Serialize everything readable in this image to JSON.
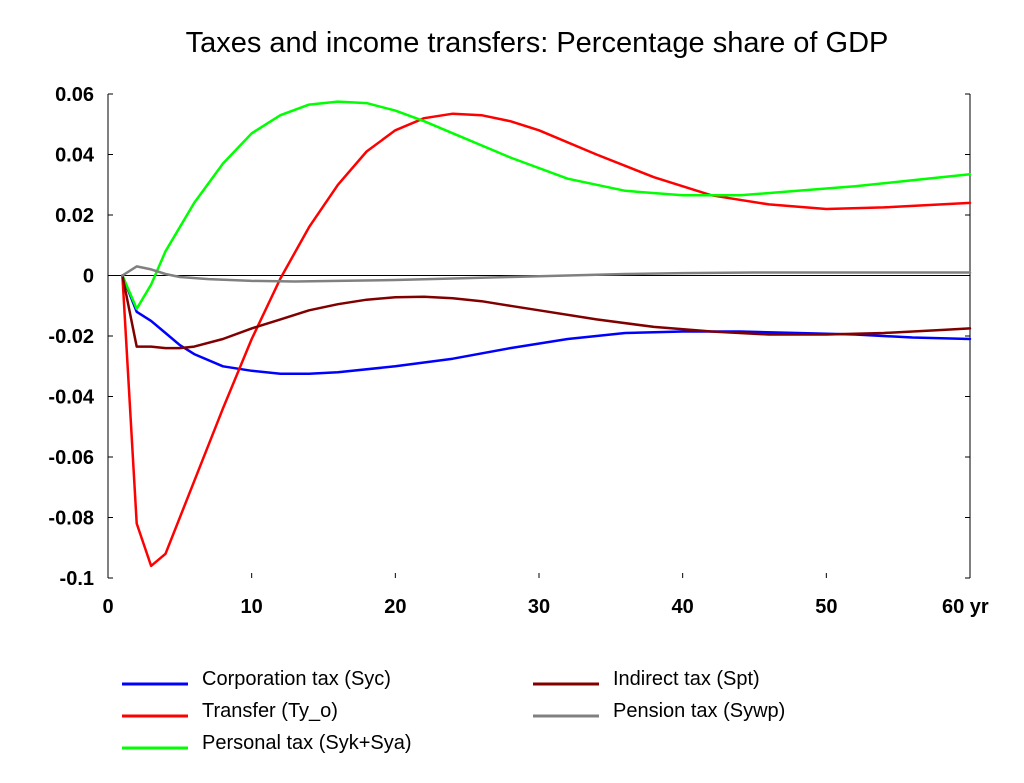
{
  "chart_data": {
    "type": "line",
    "title": "Taxes and income transfers: Percentage share of GDP",
    "xlabel": "",
    "ylabel": "",
    "x_unit_label": "yr",
    "xlim": [
      0,
      60
    ],
    "ylim": [
      -0.1,
      0.06
    ],
    "x_ticks": [
      {
        "value": 0,
        "label": "0"
      },
      {
        "value": 10,
        "label": "10"
      },
      {
        "value": 20,
        "label": "20"
      },
      {
        "value": 30,
        "label": "30"
      },
      {
        "value": 40,
        "label": "40"
      },
      {
        "value": 50,
        "label": "50"
      },
      {
        "value": 60,
        "label": "60 yr"
      }
    ],
    "y_ticks": [
      {
        "value": 0.06,
        "label": "0.06"
      },
      {
        "value": 0.04,
        "label": "0.04"
      },
      {
        "value": 0.02,
        "label": "0.02"
      },
      {
        "value": 0,
        "label": "0"
      },
      {
        "value": -0.02,
        "label": "-0.02"
      },
      {
        "value": -0.04,
        "label": "-0.04"
      },
      {
        "value": -0.06,
        "label": "-0.06"
      },
      {
        "value": -0.08,
        "label": "-0.08"
      },
      {
        "value": -0.1,
        "label": "-0.1"
      }
    ],
    "grid": false,
    "zero_line": true,
    "legend_position": "bottom",
    "series": [
      {
        "name": "Corporation tax (Syc)",
        "color": "#0000ff",
        "points": [
          [
            1,
            0
          ],
          [
            2,
            -0.012
          ],
          [
            3,
            -0.015
          ],
          [
            4,
            -0.019
          ],
          [
            5,
            -0.023
          ],
          [
            6,
            -0.026
          ],
          [
            8,
            -0.03
          ],
          [
            10,
            -0.0315
          ],
          [
            12,
            -0.0325
          ],
          [
            14,
            -0.0325
          ],
          [
            16,
            -0.032
          ],
          [
            20,
            -0.03
          ],
          [
            24,
            -0.0275
          ],
          [
            28,
            -0.024
          ],
          [
            32,
            -0.021
          ],
          [
            36,
            -0.019
          ],
          [
            40,
            -0.0185
          ],
          [
            44,
            -0.0185
          ],
          [
            48,
            -0.019
          ],
          [
            52,
            -0.0195
          ],
          [
            56,
            -0.0205
          ],
          [
            60,
            -0.021
          ]
        ]
      },
      {
        "name": "Transfer (Ty_o)",
        "color": "#ff0000",
        "points": [
          [
            1,
            0
          ],
          [
            2,
            -0.082
          ],
          [
            3,
            -0.096
          ],
          [
            4,
            -0.092
          ],
          [
            6,
            -0.068
          ],
          [
            8,
            -0.044
          ],
          [
            10,
            -0.021
          ],
          [
            12,
            -0.001
          ],
          [
            14,
            0.016
          ],
          [
            16,
            0.03
          ],
          [
            18,
            0.041
          ],
          [
            20,
            0.048
          ],
          [
            22,
            0.052
          ],
          [
            24,
            0.0535
          ],
          [
            26,
            0.053
          ],
          [
            28,
            0.051
          ],
          [
            30,
            0.048
          ],
          [
            34,
            0.04
          ],
          [
            38,
            0.0325
          ],
          [
            42,
            0.0265
          ],
          [
            46,
            0.0235
          ],
          [
            50,
            0.022
          ],
          [
            54,
            0.0225
          ],
          [
            58,
            0.0235
          ],
          [
            60,
            0.024
          ]
        ]
      },
      {
        "name": "Personal tax (Syk+Sya)",
        "color": "#00ff00",
        "points": [
          [
            1,
            0
          ],
          [
            2,
            -0.011
          ],
          [
            3,
            -0.003
          ],
          [
            4,
            0.008
          ],
          [
            6,
            0.024
          ],
          [
            8,
            0.037
          ],
          [
            10,
            0.047
          ],
          [
            12,
            0.053
          ],
          [
            14,
            0.0565
          ],
          [
            16,
            0.0575
          ],
          [
            18,
            0.057
          ],
          [
            20,
            0.0545
          ],
          [
            22,
            0.051
          ],
          [
            24,
            0.047
          ],
          [
            28,
            0.039
          ],
          [
            32,
            0.032
          ],
          [
            36,
            0.028
          ],
          [
            40,
            0.0265
          ],
          [
            44,
            0.0265
          ],
          [
            48,
            0.028
          ],
          [
            52,
            0.0295
          ],
          [
            56,
            0.0315
          ],
          [
            60,
            0.0335
          ]
        ]
      },
      {
        "name": "Indirect tax (Spt)",
        "color": "#800000",
        "points": [
          [
            1,
            0
          ],
          [
            2,
            -0.0235
          ],
          [
            3,
            -0.0235
          ],
          [
            4,
            -0.024
          ],
          [
            5,
            -0.024
          ],
          [
            6,
            -0.0235
          ],
          [
            8,
            -0.021
          ],
          [
            10,
            -0.0175
          ],
          [
            12,
            -0.0145
          ],
          [
            14,
            -0.0115
          ],
          [
            16,
            -0.0095
          ],
          [
            18,
            -0.008
          ],
          [
            20,
            -0.0072
          ],
          [
            22,
            -0.007
          ],
          [
            24,
            -0.0075
          ],
          [
            26,
            -0.0085
          ],
          [
            28,
            -0.01
          ],
          [
            30,
            -0.0115
          ],
          [
            34,
            -0.0145
          ],
          [
            38,
            -0.017
          ],
          [
            42,
            -0.0185
          ],
          [
            46,
            -0.0195
          ],
          [
            50,
            -0.0195
          ],
          [
            54,
            -0.019
          ],
          [
            58,
            -0.018
          ],
          [
            60,
            -0.0175
          ]
        ]
      },
      {
        "name": "Pension tax (Sywp)",
        "color": "#808080",
        "points": [
          [
            1,
            0
          ],
          [
            2,
            0.003
          ],
          [
            3,
            0.002
          ],
          [
            4,
            0.0005
          ],
          [
            5,
            -0.0005
          ],
          [
            7,
            -0.0012
          ],
          [
            10,
            -0.0018
          ],
          [
            13,
            -0.002
          ],
          [
            16,
            -0.0018
          ],
          [
            20,
            -0.0015
          ],
          [
            24,
            -0.001
          ],
          [
            28,
            -0.0005
          ],
          [
            32,
            0
          ],
          [
            36,
            0.0005
          ],
          [
            40,
            0.0008
          ],
          [
            45,
            0.001
          ],
          [
            50,
            0.001
          ],
          [
            55,
            0.001
          ],
          [
            60,
            0.001
          ]
        ]
      }
    ]
  }
}
